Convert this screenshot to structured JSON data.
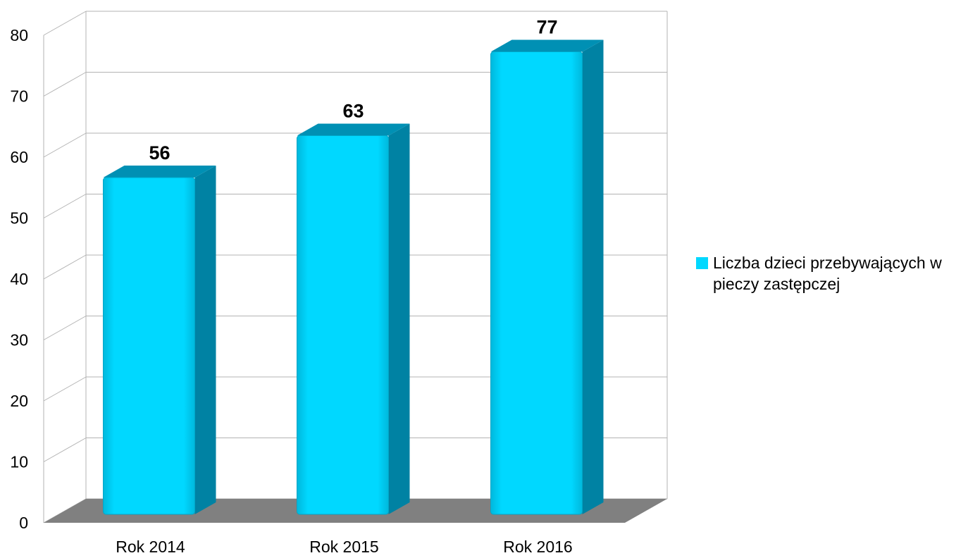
{
  "chart_data": {
    "type": "bar",
    "categories": [
      "Rok 2014",
      "Rok 2015",
      "Rok 2016"
    ],
    "series": [
      {
        "name": "Liczba dzieci przebywających w pieczy zastępczej",
        "values": [
          56,
          63,
          77
        ]
      }
    ],
    "data_labels": [
      "56",
      "63",
      "77"
    ],
    "ylim": [
      0,
      80
    ],
    "yticks": [
      "0",
      "10",
      "20",
      "30",
      "40",
      "50",
      "60",
      "70",
      "80"
    ],
    "grid": true,
    "legend_position": "right",
    "style": "3d",
    "colors": {
      "bar_front": "#00d8ff",
      "bar_side": "#0082a3",
      "bar_top": "#0090b4",
      "floor": "#808080",
      "grid": "#b3b3b3"
    }
  }
}
